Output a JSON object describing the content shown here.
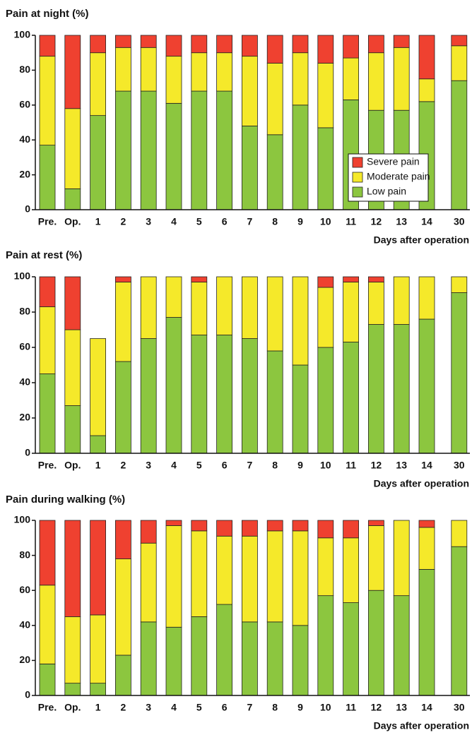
{
  "chart_data": [
    {
      "type": "stacked_bar",
      "title": "Pain at night (%)",
      "x_label": "Days after operation",
      "categories": [
        "Pre.",
        "Op.",
        "1",
        "2",
        "3",
        "4",
        "5",
        "6",
        "7",
        "8",
        "9",
        "10",
        "11",
        "12",
        "13",
        "14",
        "30"
      ],
      "series": [
        {
          "name": "Low pain",
          "color": "#8cc63f",
          "values": [
            37,
            12,
            54,
            68,
            68,
            61,
            68,
            68,
            48,
            43,
            60,
            47,
            63,
            57,
            57,
            62,
            74
          ]
        },
        {
          "name": "Moderate pain",
          "color": "#f5e92a",
          "values": [
            51,
            46,
            36,
            25,
            25,
            27,
            22,
            22,
            40,
            41,
            30,
            37,
            24,
            33,
            36,
            13,
            20
          ]
        },
        {
          "name": "Severe pain",
          "color": "#ef4130",
          "values": [
            12,
            42,
            10,
            7,
            7,
            12,
            10,
            10,
            12,
            16,
            10,
            16,
            13,
            10,
            7,
            25,
            6
          ]
        }
      ],
      "ylim": [
        0,
        100
      ],
      "yticks": [
        0,
        20,
        40,
        60,
        80,
        100
      ],
      "legend": "lower right"
    },
    {
      "type": "stacked_bar",
      "title": "Pain at rest (%)",
      "x_label": "Days after operation",
      "categories": [
        "Pre.",
        "Op.",
        "1",
        "2",
        "3",
        "4",
        "5",
        "6",
        "7",
        "8",
        "9",
        "10",
        "11",
        "12",
        "13",
        "14",
        "30"
      ],
      "series": [
        {
          "color": "#8cc63f",
          "values": [
            45,
            27,
            10,
            52,
            65,
            77,
            67,
            67,
            65,
            58,
            50,
            60,
            63,
            73,
            73,
            76,
            91
          ]
        },
        {
          "color": "#f5e92a",
          "values": [
            38,
            43,
            55,
            45,
            35,
            23,
            30,
            33,
            35,
            42,
            50,
            34,
            34,
            24,
            27,
            24,
            9
          ]
        },
        {
          "color": "#ef4130",
          "values": [
            17,
            30,
            0,
            3,
            0,
            0,
            3,
            0,
            0,
            0,
            0,
            6,
            3,
            3,
            0,
            0,
            0
          ]
        }
      ],
      "ylim": [
        0,
        100
      ],
      "yticks": [
        0,
        20,
        40,
        60,
        80,
        100
      ]
    },
    {
      "type": "stacked_bar",
      "title": "Pain during walking (%)",
      "x_label": "Days after operation",
      "categories": [
        "Pre.",
        "Op.",
        "1",
        "2",
        "3",
        "4",
        "5",
        "6",
        "7",
        "8",
        "9",
        "10",
        "11",
        "12",
        "13",
        "14",
        "30"
      ],
      "series": [
        {
          "color": "#8cc63f",
          "values": [
            18,
            7,
            7,
            23,
            42,
            39,
            45,
            52,
            42,
            42,
            40,
            57,
            53,
            60,
            57,
            72,
            85
          ]
        },
        {
          "color": "#f5e92a",
          "values": [
            45,
            38,
            39,
            55,
            45,
            58,
            49,
            39,
            49,
            52,
            54,
            33,
            37,
            37,
            43,
            24,
            15
          ]
        },
        {
          "color": "#ef4130",
          "values": [
            37,
            55,
            54,
            22,
            13,
            3,
            6,
            9,
            9,
            6,
            6,
            10,
            10,
            3,
            0,
            4,
            0
          ]
        }
      ],
      "ylim": [
        0,
        100
      ],
      "yticks": [
        0,
        20,
        40,
        60,
        80,
        100
      ]
    }
  ]
}
